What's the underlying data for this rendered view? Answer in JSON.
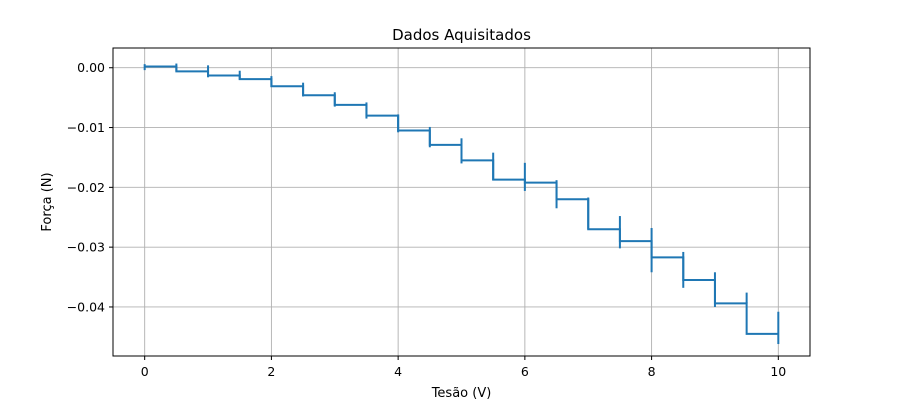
{
  "chart_data": {
    "type": "line",
    "title": "Dados Aquisitados",
    "xlabel": "Tesão (V)",
    "ylabel": "Força (N)",
    "xlim": [
      -0.5,
      10.5
    ],
    "ylim": [
      -0.0482,
      0.0033
    ],
    "grid": true,
    "x_ticks": [
      0,
      2,
      4,
      6,
      8,
      10
    ],
    "x_tick_labels": [
      "0",
      "2",
      "4",
      "6",
      "8",
      "10"
    ],
    "y_ticks": [
      0.0,
      -0.01,
      -0.02,
      -0.03,
      -0.04
    ],
    "y_tick_labels": [
      "0.00",
      "−0.01",
      "−0.02",
      "−0.03",
      "−0.04"
    ],
    "series": [
      {
        "color": "#1f77b4",
        "step_x": [
          0,
          0.5,
          1.0,
          1.5,
          2.0,
          2.5,
          3.0,
          3.5,
          4.0,
          4.5,
          5.0,
          5.5,
          6.0,
          6.5,
          7.0,
          7.5,
          8.0,
          8.5,
          9.0,
          9.5,
          10.0
        ],
        "step_y": [
          0.0002,
          -0.0006,
          -0.0013,
          -0.0019,
          -0.0031,
          -0.0046,
          -0.0062,
          -0.008,
          -0.0105,
          -0.0129,
          -0.0155,
          -0.0187,
          -0.0192,
          -0.022,
          -0.027,
          -0.029,
          -0.0317,
          -0.0355,
          -0.0394,
          -0.0445,
          -0.0445
        ],
        "spikes": [
          [
            0,
            0.0006,
            -0.0004
          ],
          [
            0.5,
            0.0007,
            -0.0006
          ],
          [
            1.0,
            0.0004,
            -0.0016
          ],
          [
            1.5,
            -0.0005,
            -0.002
          ],
          [
            2.0,
            -0.0014,
            -0.0032
          ],
          [
            2.5,
            -0.0025,
            -0.0048
          ],
          [
            3.0,
            -0.0041,
            -0.0065
          ],
          [
            3.5,
            -0.0058,
            -0.0085
          ],
          [
            4.0,
            -0.0078,
            -0.0108
          ],
          [
            4.5,
            -0.0099,
            -0.0133
          ],
          [
            5.0,
            -0.0118,
            -0.016
          ],
          [
            5.5,
            -0.0142,
            -0.0188
          ],
          [
            6.0,
            -0.0159,
            -0.0206
          ],
          [
            6.5,
            -0.0188,
            -0.0235
          ],
          [
            7.0,
            -0.0217,
            -0.027
          ],
          [
            7.5,
            -0.0248,
            -0.0302
          ],
          [
            8.0,
            -0.0268,
            -0.0342
          ],
          [
            8.5,
            -0.0308,
            -0.0368
          ],
          [
            9.0,
            -0.0342,
            -0.04
          ],
          [
            9.5,
            -0.0376,
            -0.0394
          ],
          [
            10.0,
            -0.0408,
            -0.0462
          ]
        ]
      }
    ]
  }
}
